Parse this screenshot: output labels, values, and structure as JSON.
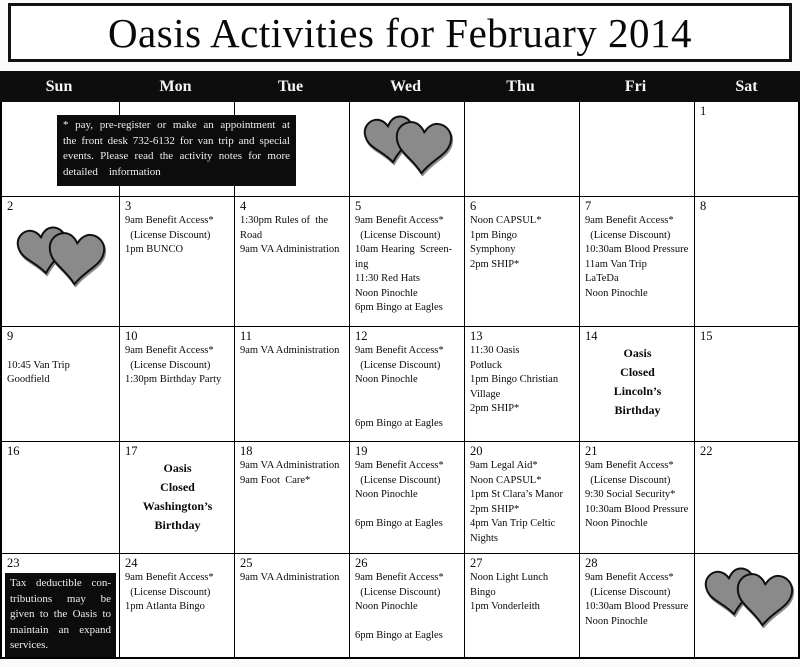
{
  "title": "Oasis Activities for February 2014",
  "weekday_headers": [
    "Sun",
    "Mon",
    "Tue",
    "Wed",
    "Thu",
    "Fri",
    "Sat"
  ],
  "notes": {
    "register_lines": [
      "* pay, pre-register or make an appointment at",
      "the front desk 732-6132 for van trip and special",
      "events.  Please read the activity notes for more",
      "detailed    information"
    ]
  },
  "colors": {
    "bar_bg": "#0d0d0d",
    "note_bg": "#0c0c0c",
    "heart_fill": "#8a8a8a",
    "border": "#000000",
    "page_bg": "#fbfbfa"
  },
  "icons": {
    "hearts": "two-overlapping-gray-hearts"
  },
  "weeks": [
    [
      {
        "day": ""
      },
      {
        "day": ""
      },
      {
        "day": ""
      },
      {
        "day": "",
        "hearts": true
      },
      {
        "day": ""
      },
      {
        "day": ""
      },
      {
        "day": "1"
      }
    ],
    [
      {
        "day": "2",
        "hearts": true
      },
      {
        "day": "3",
        "events": [
          "9am Benefit Access*",
          "  (License Discount)",
          "1pm BUNCO"
        ]
      },
      {
        "day": "4",
        "events": [
          "1:30pm Rules of  the",
          "Road",
          "9am VA Administration"
        ]
      },
      {
        "day": "5",
        "events": [
          "9am Benefit Access*",
          "  (License Discount)",
          "10am Hearing  Screen-",
          "ing",
          "11:30 Red Hats",
          "Noon Pinochle",
          "6pm Bingo at Eagles"
        ]
      },
      {
        "day": "6",
        "events": [
          "Noon CAPSUL*",
          "1pm Bingo",
          "Symphony",
          "2pm SHIP*"
        ]
      },
      {
        "day": "7",
        "events": [
          "9am Benefit Access*",
          "  (License Discount)",
          "10:30am Blood Pressure",
          "11am Van Trip",
          "LaTeDa",
          "Noon Pinochle"
        ]
      },
      {
        "day": "8"
      }
    ],
    [
      {
        "day": "9",
        "events": [
          "",
          "10:45 Van Trip",
          "Goodfield"
        ]
      },
      {
        "day": "10",
        "events": [
          "9am Benefit Access*",
          "  (License Discount)",
          "1:30pm Birthday Party"
        ]
      },
      {
        "day": "11",
        "events": [
          "9am VA Administration"
        ]
      },
      {
        "day": "12",
        "events": [
          "9am Benefit Access*",
          "  (License Discount)",
          "Noon Pinochle",
          "",
          "",
          "6pm Bingo at Eagles"
        ]
      },
      {
        "day": "13",
        "events": [
          "11:30 Oasis",
          "Potluck",
          "1pm Bingo Christian",
          "Village",
          "2pm SHIP*"
        ]
      },
      {
        "day": "14",
        "closed": true,
        "events": [
          "Oasis",
          "Closed",
          "Lincoln’s",
          "Birthday"
        ]
      },
      {
        "day": "15"
      }
    ],
    [
      {
        "day": "16"
      },
      {
        "day": "17",
        "closed": true,
        "events": [
          "Oasis",
          "Closed",
          "Washington’s",
          "Birthday"
        ]
      },
      {
        "day": "18",
        "events": [
          "9am VA Administration",
          "9am Foot  Care*"
        ]
      },
      {
        "day": "19",
        "events": [
          "9am Benefit Access*",
          "  (License Discount)",
          "Noon Pinochle",
          "",
          "6pm Bingo at Eagles"
        ]
      },
      {
        "day": "20",
        "events": [
          "9am Legal Aid*",
          "Noon CAPSUL*",
          "1pm St Clara’s Manor",
          "2pm SHIP*",
          "4pm Van Trip Celtic",
          "Nights"
        ]
      },
      {
        "day": "21",
        "events": [
          "9am Benefit Access*",
          "  (License Discount)",
          "9:30 Social Security*",
          "10:30am Blood Pressure",
          "Noon Pinochle"
        ]
      },
      {
        "day": "22"
      }
    ],
    [
      {
        "day": "23",
        "note_lines": [
          "Tax deductible con-",
          "tributions may be",
          "given to the Oasis to",
          "maintain an expand",
          "services."
        ]
      },
      {
        "day": "24",
        "events": [
          "9am Benefit Access*",
          "  (License Discount)",
          "1pm Atlanta Bingo"
        ]
      },
      {
        "day": "25",
        "events": [
          "9am VA Administration"
        ]
      },
      {
        "day": "26",
        "events": [
          "9am Benefit Access*",
          "  (License Discount)",
          "Noon Pinochle",
          "",
          "6pm Bingo at Eagles"
        ]
      },
      {
        "day": "27",
        "events": [
          "Noon Light Lunch",
          "Bingo",
          "1pm Vonderleith"
        ]
      },
      {
        "day": "28",
        "events": [
          "9am Benefit Access*",
          "  (License Discount)",
          "10:30am Blood Pressure",
          "Noon Pinochle"
        ]
      },
      {
        "day": "",
        "hearts": true
      }
    ]
  ]
}
